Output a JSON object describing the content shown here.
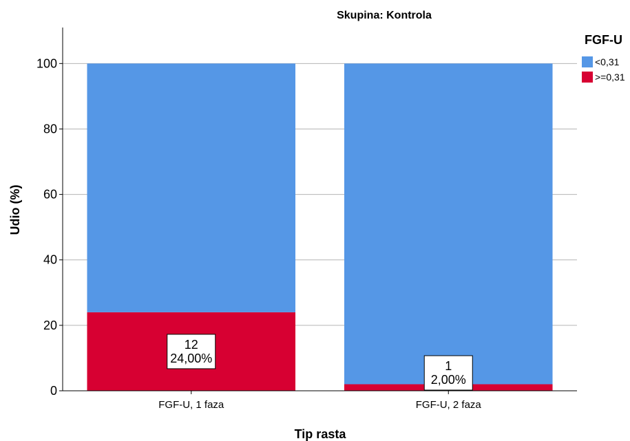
{
  "chart_data": {
    "type": "bar",
    "stacked": true,
    "title": "Skupina: Kontrola",
    "xlabel": "Tip rasta",
    "ylabel": "Udio (%)",
    "ylim": [
      0,
      111
    ],
    "yticks": [
      0,
      20,
      40,
      60,
      80,
      100
    ],
    "grid": true,
    "categories": [
      "FGF-U, 1 faza",
      "FGF-U, 2 faza"
    ],
    "legend": {
      "title": "FGF-U",
      "position": "top-right"
    },
    "series": [
      {
        "name": ">=0,31",
        "values": [
          24,
          2
        ],
        "color": "#d70032",
        "counts": [
          "12",
          "1"
        ],
        "labels": [
          "24,00%",
          "2,00%"
        ]
      },
      {
        "name": "<0,31",
        "values": [
          76,
          98
        ],
        "color": "#5597e6"
      }
    ]
  }
}
